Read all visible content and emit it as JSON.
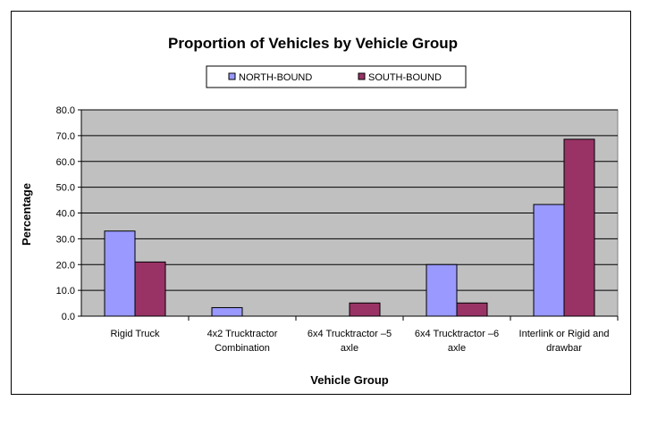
{
  "chart_data": {
    "type": "bar",
    "title": "Proportion of Vehicles by Vehicle Group",
    "xlabel": "Vehicle Group",
    "ylabel": "Percentage",
    "ylim": [
      0,
      80
    ],
    "yticks": [
      "0.0",
      "10.0",
      "20.0",
      "30.0",
      "40.0",
      "50.0",
      "60.0",
      "70.0",
      "80.0"
    ],
    "grid": true,
    "legend_position": "top",
    "categories": [
      [
        "Rigid Truck"
      ],
      [
        "4x2 Trucktractor",
        "Combination"
      ],
      [
        "6x4 Trucktractor –5",
        "axle"
      ],
      [
        "6x4 Trucktractor –6",
        "axle"
      ],
      [
        "Interlink or Rigid and",
        "drawbar"
      ]
    ],
    "series": [
      {
        "name": "NORTH-BOUND",
        "color": "#9999ff",
        "values": [
          33.0,
          3.3,
          0,
          20.0,
          43.3
        ]
      },
      {
        "name": "SOUTH-BOUND",
        "color": "#993366",
        "values": [
          21.0,
          0,
          5.1,
          5.1,
          68.6
        ]
      }
    ],
    "plot_background": "#c0c0c0"
  }
}
